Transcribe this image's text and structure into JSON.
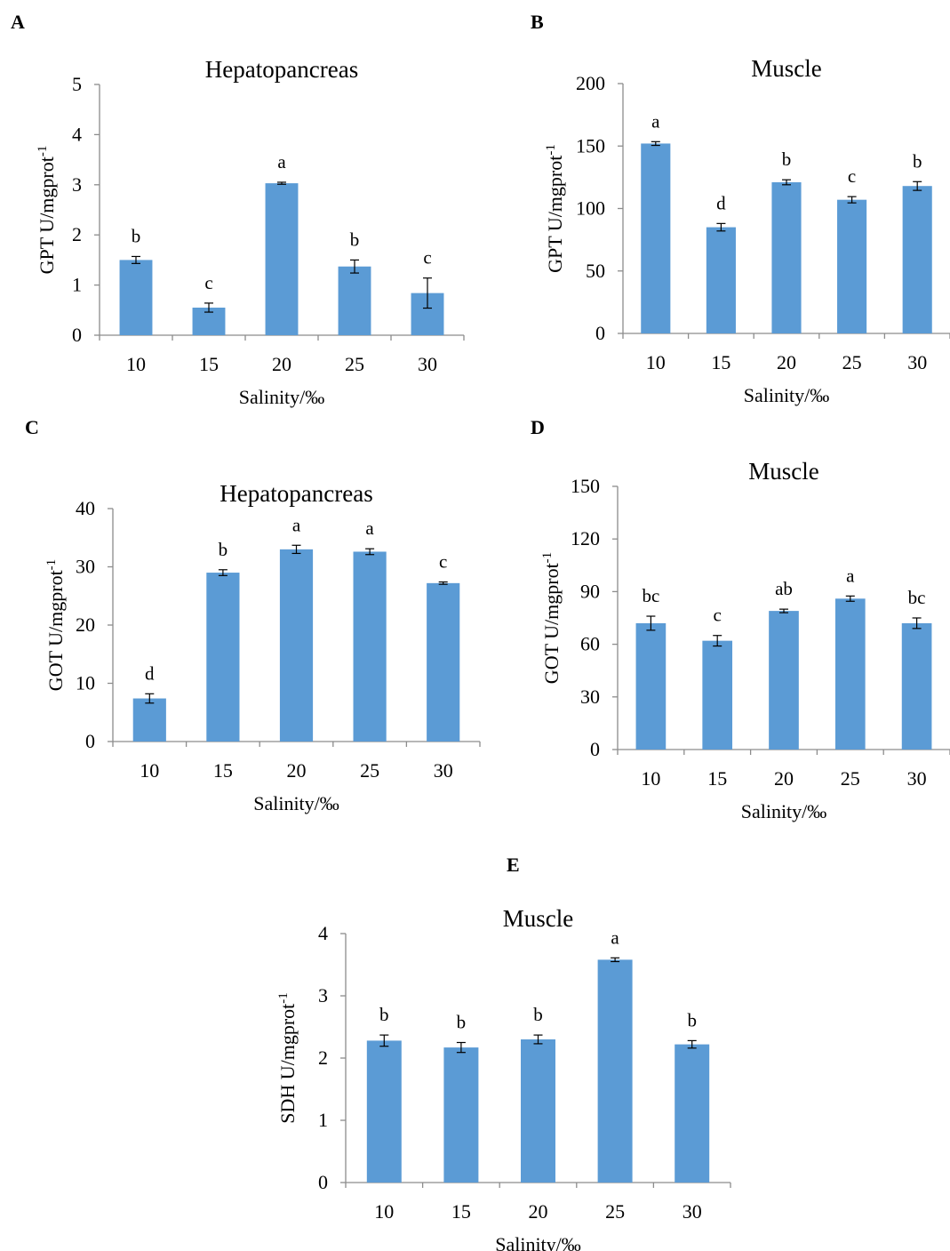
{
  "chart_data": [
    {
      "panel": "A",
      "type": "bar",
      "title": "Hepatopancreas",
      "categories": [
        "10",
        "15",
        "20",
        "25",
        "30"
      ],
      "values": [
        1.5,
        0.55,
        3.03,
        1.37,
        0.84
      ],
      "errors": [
        0.07,
        0.09,
        0.02,
        0.13,
        0.3
      ],
      "significance": [
        "b",
        "c",
        "a",
        "b",
        "c"
      ],
      "ylabel_main": "GPT",
      "ylabel_unit": "U/mgprot",
      "ylabel_sup": "-1",
      "xlabel": "Salinity/‰",
      "ylim": [
        0,
        5
      ],
      "yticks": [
        0,
        1,
        2,
        3,
        4,
        5
      ],
      "bar_color": "#5b9bd5",
      "grid": false
    },
    {
      "panel": "B",
      "type": "bar",
      "title": "Muscle",
      "categories": [
        "10",
        "15",
        "20",
        "25",
        "30"
      ],
      "values": [
        152,
        85,
        121,
        107,
        118
      ],
      "errors": [
        1.5,
        3,
        2,
        2.5,
        3.5
      ],
      "significance": [
        "a",
        "d",
        "b",
        "c",
        "b"
      ],
      "ylabel_main": "GPT",
      "ylabel_unit": "U/mgprot",
      "ylabel_sup": "-1",
      "xlabel": "Salinity/‰",
      "ylim": [
        0,
        200
      ],
      "yticks": [
        0,
        50,
        100,
        150,
        200
      ],
      "bar_color": "#5b9bd5",
      "grid": false
    },
    {
      "panel": "C",
      "type": "bar",
      "title": "Hepatopancreas",
      "categories": [
        "10",
        "15",
        "20",
        "25",
        "30"
      ],
      "values": [
        7.4,
        29.0,
        33.0,
        32.6,
        27.2
      ],
      "errors": [
        0.8,
        0.5,
        0.7,
        0.5,
        0.2
      ],
      "significance": [
        "d",
        "b",
        "a",
        "a",
        "c"
      ],
      "ylabel_main": "GOT",
      "ylabel_unit": "U/mgprot",
      "ylabel_sup": "-1",
      "xlabel": "Salinity/‰",
      "ylim": [
        0,
        40
      ],
      "yticks": [
        0,
        10,
        20,
        30,
        40
      ],
      "bar_color": "#5b9bd5",
      "grid": false
    },
    {
      "panel": "D",
      "type": "bar",
      "title": "Muscle",
      "categories": [
        "10",
        "15",
        "20",
        "25",
        "30"
      ],
      "values": [
        72,
        62,
        79,
        86,
        72
      ],
      "errors": [
        4,
        3,
        1,
        1.5,
        3
      ],
      "significance": [
        "bc",
        "c",
        "ab",
        "a",
        "bc"
      ],
      "ylabel_main": "GOT",
      "ylabel_unit": "U/mgprot",
      "ylabel_sup": "-1",
      "xlabel": "Salinity/‰",
      "ylim": [
        0,
        150
      ],
      "yticks": [
        0,
        30,
        60,
        90,
        120,
        150
      ],
      "bar_color": "#5b9bd5",
      "grid": false
    },
    {
      "panel": "E",
      "type": "bar",
      "title": "Muscle",
      "categories": [
        "10",
        "15",
        "20",
        "25",
        "30"
      ],
      "values": [
        2.28,
        2.17,
        2.3,
        3.58,
        2.22
      ],
      "errors": [
        0.09,
        0.08,
        0.07,
        0.03,
        0.06
      ],
      "significance": [
        "b",
        "b",
        "b",
        "a",
        "b"
      ],
      "ylabel_main": "SDH",
      "ylabel_unit": "U/mgprot",
      "ylabel_sup": "-1",
      "xlabel": "Salinity/‰",
      "ylim": [
        0,
        4
      ],
      "yticks": [
        0,
        1,
        2,
        3,
        4
      ],
      "bar_color": "#5b9bd5",
      "grid": false
    }
  ]
}
